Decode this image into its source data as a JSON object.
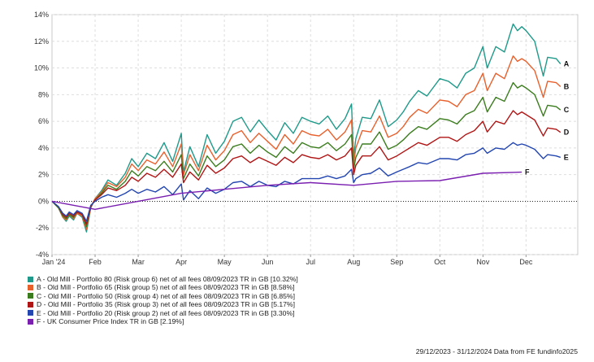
{
  "chart_data": {
    "type": "line",
    "ylim": [
      -4,
      14
    ],
    "yticks": [
      -4,
      -2,
      0,
      2,
      4,
      6,
      8,
      10,
      12,
      14
    ],
    "ytick_labels": [
      "-4%",
      "-2%",
      "0%",
      "2%",
      "4%",
      "6%",
      "8%",
      "10%",
      "12%",
      "14%"
    ],
    "xticks": [
      "Jan '24",
      "Feb",
      "Mar",
      "Apr",
      "May",
      "Jun",
      "Jul",
      "Aug",
      "Sep",
      "Oct",
      "Nov",
      "Dec"
    ],
    "grid": true,
    "legend_position": "bottom-left",
    "series": [
      {
        "name": "A - Old Mill - Portfolio 80 (Risk group 6) net of all fees 08/09/2023 TR in GB [10.32%]",
        "end_label": "A",
        "color": "#1f9a8a",
        "x": [
          0,
          0.15,
          0.25,
          0.33,
          0.4,
          0.5,
          0.58,
          0.7,
          0.8,
          0.9,
          1.0,
          1.15,
          1.3,
          1.5,
          1.7,
          1.85,
          2.0,
          2.2,
          2.4,
          2.6,
          2.8,
          3.0,
          3.05,
          3.2,
          3.4,
          3.6,
          3.8,
          4.0,
          4.2,
          4.4,
          4.6,
          4.8,
          5.0,
          5.2,
          5.4,
          5.6,
          5.8,
          6.0,
          6.2,
          6.4,
          6.6,
          6.8,
          6.95,
          7.0,
          7.05,
          7.2,
          7.4,
          7.6,
          7.8,
          8.0,
          8.15,
          8.3,
          8.5,
          8.7,
          9.0,
          9.2,
          9.4,
          9.6,
          9.8,
          10.0,
          10.1,
          10.3,
          10.5,
          10.7,
          10.8,
          10.9,
          11.0,
          11.2,
          11.4,
          11.5,
          11.7,
          11.8
        ],
        "y": [
          0,
          -0.5,
          -1.2,
          -1.5,
          -1.1,
          -1.4,
          -0.9,
          -1.2,
          -2.3,
          -0.5,
          0.2,
          0.8,
          1.6,
          1.2,
          2.1,
          3.2,
          2.6,
          3.6,
          3.2,
          4.4,
          3.0,
          5.1,
          2.2,
          4.1,
          2.6,
          5.0,
          3.6,
          4.5,
          6.0,
          6.3,
          5.2,
          6.1,
          5.3,
          4.6,
          5.9,
          5.1,
          6.3,
          6.0,
          5.8,
          6.4,
          5.4,
          6.2,
          7.3,
          3.3,
          4.7,
          6.3,
          6.2,
          7.6,
          5.6,
          6.1,
          6.7,
          7.5,
          8.3,
          7.9,
          9.2,
          9.0,
          8.5,
          9.6,
          10.0,
          11.6,
          10.0,
          11.6,
          11.2,
          13.3,
          12.8,
          13.1,
          12.8,
          12.0,
          9.4,
          10.8,
          10.7,
          10.3
        ]
      },
      {
        "name": "B - Old Mill - Portfolio 65 (Risk group 5) net of all fees 08/09/2023 TR in GB [8.58%]",
        "end_label": "B",
        "color": "#e8602c",
        "x": [
          0,
          0.15,
          0.25,
          0.33,
          0.4,
          0.5,
          0.58,
          0.7,
          0.8,
          0.9,
          1.0,
          1.15,
          1.3,
          1.5,
          1.7,
          1.85,
          2.0,
          2.2,
          2.4,
          2.6,
          2.8,
          3.0,
          3.05,
          3.2,
          3.4,
          3.6,
          3.8,
          4.0,
          4.2,
          4.4,
          4.6,
          4.8,
          5.0,
          5.2,
          5.4,
          5.6,
          5.8,
          6.0,
          6.2,
          6.4,
          6.6,
          6.8,
          6.95,
          7.0,
          7.05,
          7.2,
          7.4,
          7.6,
          7.8,
          8.0,
          8.15,
          8.3,
          8.5,
          8.7,
          9.0,
          9.2,
          9.4,
          9.6,
          9.8,
          10.0,
          10.1,
          10.3,
          10.5,
          10.7,
          10.8,
          10.9,
          11.0,
          11.2,
          11.4,
          11.5,
          11.7,
          11.8
        ],
        "y": [
          0,
          -0.5,
          -1.2,
          -1.4,
          -1.0,
          -1.3,
          -0.9,
          -1.1,
          -2.1,
          -0.4,
          0.2,
          0.7,
          1.4,
          1.1,
          1.8,
          2.8,
          2.3,
          3.1,
          2.8,
          3.7,
          2.6,
          4.3,
          2.0,
          3.5,
          2.3,
          4.2,
          3.1,
          3.8,
          5.0,
          5.3,
          4.4,
          5.1,
          4.5,
          3.9,
          5.0,
          4.3,
          5.3,
          5.0,
          4.9,
          5.4,
          4.6,
          5.2,
          6.1,
          2.8,
          4.0,
          5.3,
          5.2,
          6.4,
          4.8,
          5.1,
          5.6,
          6.3,
          6.9,
          6.6,
          7.6,
          7.5,
          7.1,
          8.0,
          8.3,
          9.6,
          8.3,
          9.6,
          9.2,
          10.9,
          10.5,
          10.7,
          10.5,
          9.8,
          7.8,
          9.0,
          8.9,
          8.6
        ]
      },
      {
        "name": "C - Old Mill - Portfolio 50 (Risk group 4) net of all fees 08/09/2023 TR in GB [6.85%]",
        "end_label": "C",
        "color": "#3b7d1e",
        "x": [
          0,
          0.15,
          0.25,
          0.33,
          0.4,
          0.5,
          0.58,
          0.7,
          0.8,
          0.9,
          1.0,
          1.15,
          1.3,
          1.5,
          1.7,
          1.85,
          2.0,
          2.2,
          2.4,
          2.6,
          2.8,
          3.0,
          3.05,
          3.2,
          3.4,
          3.6,
          3.8,
          4.0,
          4.2,
          4.4,
          4.6,
          4.8,
          5.0,
          5.2,
          5.4,
          5.6,
          5.8,
          6.0,
          6.2,
          6.4,
          6.6,
          6.8,
          6.95,
          7.0,
          7.05,
          7.2,
          7.4,
          7.6,
          7.8,
          8.0,
          8.15,
          8.3,
          8.5,
          8.7,
          9.0,
          9.2,
          9.4,
          9.6,
          9.8,
          10.0,
          10.1,
          10.3,
          10.5,
          10.7,
          10.8,
          10.9,
          11.0,
          11.2,
          11.4,
          11.5,
          11.7,
          11.8
        ],
        "y": [
          0,
          -0.5,
          -1.1,
          -1.3,
          -1.0,
          -1.2,
          -0.8,
          -1.0,
          -1.9,
          -0.4,
          0.1,
          0.6,
          1.2,
          0.9,
          1.5,
          2.3,
          1.9,
          2.6,
          2.3,
          3.0,
          2.2,
          3.5,
          1.7,
          2.8,
          1.9,
          3.4,
          2.6,
          3.1,
          4.1,
          4.3,
          3.6,
          4.2,
          3.7,
          3.3,
          4.1,
          3.6,
          4.4,
          4.1,
          4.0,
          4.4,
          3.8,
          4.3,
          5.0,
          2.4,
          3.3,
          4.3,
          4.3,
          5.2,
          3.9,
          4.2,
          4.6,
          5.1,
          5.6,
          5.4,
          6.2,
          6.1,
          5.8,
          6.5,
          6.8,
          7.8,
          6.7,
          7.8,
          7.5,
          8.9,
          8.5,
          8.7,
          8.5,
          8.0,
          6.4,
          7.2,
          7.1,
          6.85
        ]
      },
      {
        "name": "D - Old Mill - Portfolio 35 (Risk group 3) net of all fees 08/09/2023 TR in GB [5.17%]",
        "end_label": "D",
        "color": "#b01515",
        "x": [
          0,
          0.15,
          0.25,
          0.33,
          0.4,
          0.5,
          0.58,
          0.7,
          0.8,
          0.9,
          1.0,
          1.15,
          1.3,
          1.5,
          1.7,
          1.85,
          2.0,
          2.2,
          2.4,
          2.6,
          2.8,
          3.0,
          3.05,
          3.2,
          3.4,
          3.6,
          3.8,
          4.0,
          4.2,
          4.4,
          4.6,
          4.8,
          5.0,
          5.2,
          5.4,
          5.6,
          5.8,
          6.0,
          6.2,
          6.4,
          6.6,
          6.8,
          6.95,
          7.0,
          7.05,
          7.2,
          7.4,
          7.6,
          7.8,
          8.0,
          8.15,
          8.3,
          8.5,
          8.7,
          9.0,
          9.2,
          9.4,
          9.6,
          9.8,
          10.0,
          10.1,
          10.3,
          10.5,
          10.7,
          10.8,
          10.9,
          11.0,
          11.2,
          11.4,
          11.5,
          11.7,
          11.8
        ],
        "y": [
          0,
          -0.4,
          -1.0,
          -1.2,
          -0.9,
          -1.1,
          -0.8,
          -1.0,
          -1.7,
          -0.4,
          0.1,
          0.5,
          1.0,
          0.8,
          1.2,
          1.8,
          1.5,
          2.1,
          1.8,
          2.4,
          1.8,
          2.8,
          1.4,
          2.2,
          1.6,
          2.7,
          2.1,
          2.5,
          3.2,
          3.4,
          2.9,
          3.3,
          3.0,
          2.7,
          3.3,
          2.9,
          3.5,
          3.3,
          3.2,
          3.5,
          3.1,
          3.4,
          4.0,
          2.0,
          2.7,
          3.4,
          3.4,
          4.1,
          3.1,
          3.4,
          3.7,
          4.0,
          4.4,
          4.2,
          4.8,
          4.8,
          4.5,
          5.0,
          5.3,
          6.0,
          5.2,
          6.0,
          5.8,
          6.8,
          6.5,
          6.7,
          6.5,
          6.1,
          4.9,
          5.5,
          5.4,
          5.17
        ]
      },
      {
        "name": "E - Old Mill - Portfolio 20 (Risk group 2) net of all fees 08/09/2023 TR in GB [3.30%]",
        "end_label": "E",
        "color": "#2346b0",
        "x": [
          0,
          0.15,
          0.25,
          0.33,
          0.4,
          0.5,
          0.58,
          0.7,
          0.8,
          0.9,
          1.0,
          1.15,
          1.3,
          1.5,
          1.7,
          1.85,
          2.0,
          2.2,
          2.4,
          2.6,
          2.8,
          3.0,
          3.05,
          3.2,
          3.4,
          3.6,
          3.8,
          4.0,
          4.2,
          4.4,
          4.6,
          4.8,
          5.0,
          5.2,
          5.4,
          5.6,
          5.8,
          6.0,
          6.2,
          6.4,
          6.6,
          6.8,
          6.95,
          7.0,
          7.05,
          7.2,
          7.4,
          7.6,
          7.8,
          8.0,
          8.15,
          8.3,
          8.5,
          8.7,
          9.0,
          9.2,
          9.4,
          9.6,
          9.8,
          10.0,
          10.1,
          10.3,
          10.5,
          10.7,
          10.8,
          10.9,
          11.0,
          11.2,
          11.4,
          11.5,
          11.7,
          11.8
        ],
        "y": [
          0,
          -0.4,
          -0.9,
          -1.1,
          -0.8,
          -1.0,
          -0.7,
          -0.9,
          -1.5,
          -0.3,
          0.0,
          0.3,
          0.5,
          0.3,
          0.6,
          0.9,
          0.6,
          0.9,
          0.7,
          1.1,
          0.5,
          1.3,
          0.1,
          0.8,
          0.2,
          1.0,
          0.6,
          0.9,
          1.4,
          1.5,
          1.1,
          1.5,
          1.2,
          1.1,
          1.5,
          1.3,
          1.7,
          1.7,
          1.7,
          1.9,
          1.7,
          1.9,
          2.4,
          1.4,
          1.7,
          2.0,
          2.1,
          2.5,
          1.9,
          2.2,
          2.4,
          2.6,
          2.9,
          2.8,
          3.2,
          3.2,
          3.1,
          3.5,
          3.6,
          4.0,
          3.6,
          4.0,
          3.9,
          4.4,
          4.2,
          4.3,
          4.2,
          3.9,
          3.2,
          3.5,
          3.4,
          3.3
        ]
      },
      {
        "name": "F - UK Consumer Price Index TR in GB [2.19%]",
        "end_label": "F",
        "color": "#7a1fb0",
        "x": [
          0,
          1.0,
          2.0,
          3.0,
          4.0,
          5.0,
          6.0,
          7.0,
          8.0,
          9.0,
          10.0,
          10.9
        ],
        "y": [
          0,
          -0.6,
          0.0,
          0.6,
          0.9,
          1.2,
          1.4,
          1.2,
          1.5,
          1.55,
          2.1,
          2.19
        ]
      }
    ]
  },
  "footer": {
    "text": "29/12/2023 - 31/12/2024 Data from FE fundinfo2025"
  }
}
